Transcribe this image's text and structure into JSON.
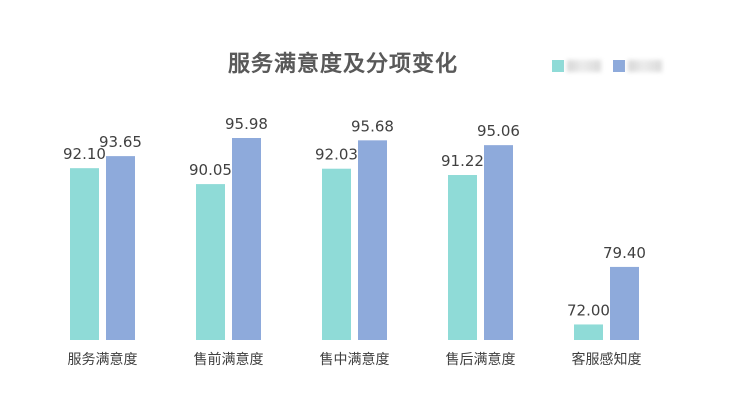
{
  "chart_data": {
    "type": "bar",
    "title": "服务满意度及分项变化",
    "categories": [
      "服务满意度",
      "售前满意度",
      "售中满意度",
      "售后满意度",
      "客服感知度"
    ],
    "series": [
      {
        "values": [
          92.1,
          90.05,
          92.03,
          91.22,
          72.0
        ],
        "labels": [
          "92.10",
          "90.05",
          "92.03",
          "91.22",
          "72.00"
        ],
        "color": "#8fdbd7"
      },
      {
        "values": [
          93.65,
          95.98,
          95.68,
          95.06,
          79.4
        ],
        "labels": [
          "93.65",
          "95.98",
          "95.68",
          "95.06",
          "79.40"
        ],
        "color": "#8eaadb"
      }
    ],
    "ylim": [
      70,
      100
    ],
    "grid": false,
    "legend_position": "top-right",
    "legend_text_obscured": true
  }
}
